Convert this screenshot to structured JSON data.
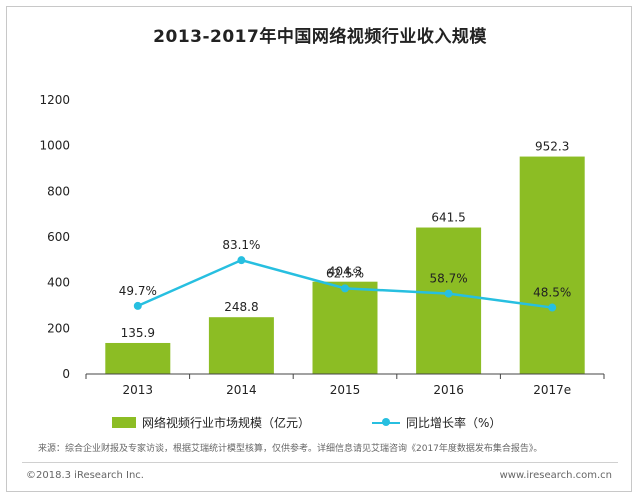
{
  "chart_data": {
    "type": "bar",
    "title": "2013-2017年中国网络视频行业收入规模",
    "categories": [
      "2013",
      "2014",
      "2015",
      "2016",
      "2017e"
    ],
    "series": [
      {
        "name": "网络视频行业市场规模（亿元）",
        "type": "bar",
        "values": [
          135.9,
          248.8,
          404.3,
          641.5,
          952.3
        ],
        "value_labels": [
          "135.9",
          "248.8",
          "404.3",
          "641.5",
          "952.3"
        ],
        "color": "#8cbd24"
      },
      {
        "name": "同比增长率（%）",
        "type": "line",
        "values": [
          49.7,
          83.1,
          62.5,
          58.7,
          48.5
        ],
        "value_labels": [
          "49.7%",
          "83.1%",
          "62.5%",
          "58.7%",
          "48.5%"
        ],
        "color": "#27bfe0"
      }
    ],
    "y_ticks": [
      "0",
      "200",
      "400",
      "600",
      "800",
      "1000",
      "1200"
    ],
    "ylim": [
      0,
      1200
    ],
    "y2lim": [
      0,
      200
    ],
    "grid": false,
    "legend_position": "bottom"
  },
  "source_text": "来源：综合企业财报及专家访谈，根据艾瑞统计模型核算，仅供参考。详细信息请见艾瑞咨询《2017年度数据发布集合报告》。",
  "footer": {
    "copyright": "©2018.3 iResearch Inc.",
    "website": "www.iresearch.com.cn"
  }
}
